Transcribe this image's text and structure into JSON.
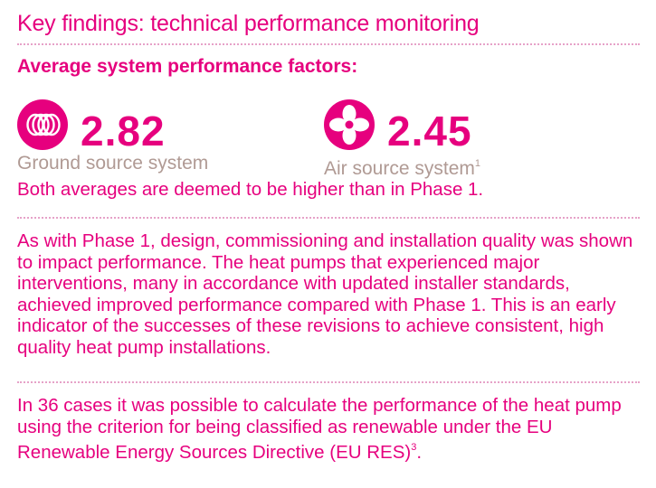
{
  "heading": "Key findings: technical performance monitoring",
  "subheading": "Average system performance factors:",
  "stats": [
    {
      "icon": "ground-source-rings-icon",
      "value": "2.82",
      "label": "Ground source system",
      "footnote": ""
    },
    {
      "icon": "air-source-fan-icon",
      "value": "2.45",
      "label": "Air source system",
      "footnote": "1"
    }
  ],
  "summary": "Both averages are deemed to be higher than in Phase 1.",
  "paragraph1": "As with Phase 1, design, commissioning and installation quality was shown to impact performance. The heat pumps that experienced major interventions, many in accordance with updated installer standards, achieved improved performance compared with Phase 1. This is an early indicator of the successes of these revisions to achieve consistent, high quality heat pump installations.",
  "paragraph2": {
    "text": "In 36 cases it was possible to calculate the performance of the heat pump using the criterion for being classified as renewable under the EU Renewable Energy Sources Directive (EU RES)",
    "footnote": "3",
    "end": "."
  },
  "colors": {
    "accent": "#e6007e",
    "muted_label": "#b09a94",
    "dotted_rule": "#e6a2c8"
  }
}
